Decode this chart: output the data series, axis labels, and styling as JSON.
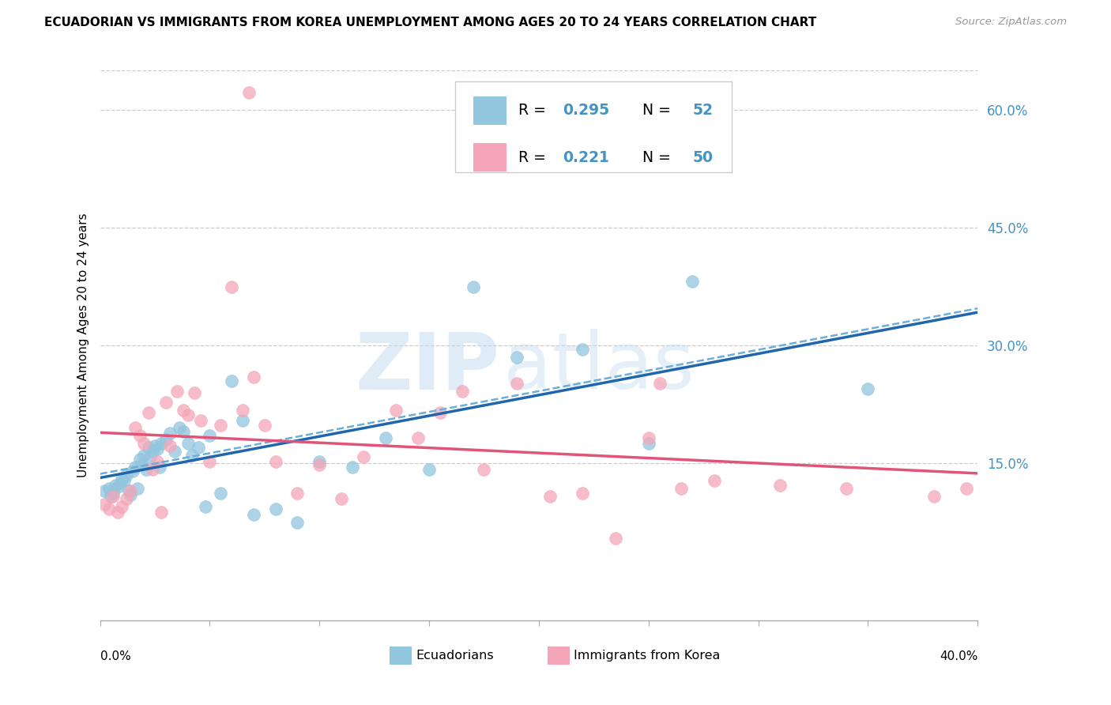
{
  "title": "ECUADORIAN VS IMMIGRANTS FROM KOREA UNEMPLOYMENT AMONG AGES 20 TO 24 YEARS CORRELATION CHART",
  "source": "Source: ZipAtlas.com",
  "ylabel": "Unemployment Among Ages 20 to 24 years",
  "color_blue": "#92c5de",
  "color_pink": "#f4a6b8",
  "color_blue_line": "#2166ac",
  "color_pink_line": "#e05577",
  "color_blue_dashed": "#6baed6",
  "color_right_labels": "#4393c3",
  "r_ecu": "0.295",
  "n_ecu": "52",
  "r_kor": "0.221",
  "n_kor": "50",
  "x_min": 0.0,
  "x_max": 0.4,
  "y_min": -0.05,
  "y_max": 0.65,
  "y_ticks": [
    0.15,
    0.3,
    0.45,
    0.6
  ],
  "y_tick_labels": [
    "15.0%",
    "30.0%",
    "45.0%",
    "60.0%"
  ],
  "watermark_zip": "ZIP",
  "watermark_atlas": "atlas",
  "ecu_x": [
    0.002,
    0.004,
    0.005,
    0.006,
    0.007,
    0.008,
    0.009,
    0.01,
    0.011,
    0.012,
    0.013,
    0.014,
    0.015,
    0.016,
    0.017,
    0.018,
    0.019,
    0.02,
    0.021,
    0.022,
    0.023,
    0.024,
    0.025,
    0.026,
    0.027,
    0.028,
    0.03,
    0.032,
    0.034,
    0.036,
    0.038,
    0.04,
    0.042,
    0.045,
    0.048,
    0.05,
    0.055,
    0.06,
    0.065,
    0.07,
    0.08,
    0.09,
    0.1,
    0.115,
    0.13,
    0.15,
    0.17,
    0.19,
    0.22,
    0.25,
    0.27,
    0.35
  ],
  "ecu_y": [
    0.115,
    0.118,
    0.108,
    0.112,
    0.122,
    0.12,
    0.125,
    0.13,
    0.128,
    0.135,
    0.115,
    0.11,
    0.14,
    0.145,
    0.118,
    0.155,
    0.148,
    0.16,
    0.142,
    0.17,
    0.158,
    0.165,
    0.172,
    0.168,
    0.145,
    0.175,
    0.18,
    0.188,
    0.165,
    0.195,
    0.19,
    0.175,
    0.16,
    0.17,
    0.095,
    0.185,
    0.112,
    0.255,
    0.205,
    0.085,
    0.092,
    0.075,
    0.152,
    0.145,
    0.182,
    0.142,
    0.375,
    0.285,
    0.295,
    0.175,
    0.382,
    0.245
  ],
  "kor_x": [
    0.002,
    0.004,
    0.006,
    0.008,
    0.01,
    0.012,
    0.014,
    0.016,
    0.018,
    0.02,
    0.022,
    0.024,
    0.026,
    0.028,
    0.03,
    0.032,
    0.035,
    0.038,
    0.04,
    0.043,
    0.046,
    0.05,
    0.055,
    0.06,
    0.065,
    0.07,
    0.075,
    0.08,
    0.09,
    0.1,
    0.11,
    0.12,
    0.135,
    0.145,
    0.155,
    0.165,
    0.175,
    0.19,
    0.205,
    0.22,
    0.235,
    0.25,
    0.265,
    0.28,
    0.31,
    0.34,
    0.38,
    0.395,
    0.068,
    0.255
  ],
  "kor_y": [
    0.098,
    0.092,
    0.108,
    0.088,
    0.095,
    0.105,
    0.115,
    0.195,
    0.185,
    0.175,
    0.215,
    0.142,
    0.152,
    0.088,
    0.228,
    0.172,
    0.242,
    0.218,
    0.212,
    0.24,
    0.205,
    0.152,
    0.198,
    0.375,
    0.218,
    0.26,
    0.198,
    0.152,
    0.112,
    0.148,
    0.105,
    0.158,
    0.218,
    0.182,
    0.215,
    0.242,
    0.142,
    0.252,
    0.108,
    0.112,
    0.055,
    0.182,
    0.118,
    0.128,
    0.122,
    0.118,
    0.108,
    0.118,
    0.622,
    0.252
  ]
}
